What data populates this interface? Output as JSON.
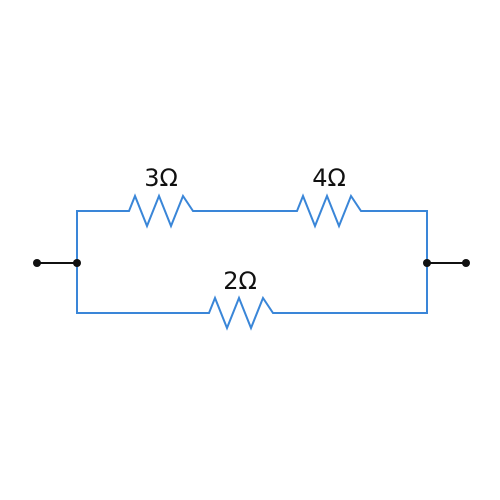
{
  "circuit": {
    "wire_color": "#3a86d8",
    "terminal_color": "#111111",
    "resistors": [
      {
        "id": "r1",
        "label": "3Ω"
      },
      {
        "id": "r2",
        "label": "4Ω"
      },
      {
        "id": "r3",
        "label": "2Ω"
      }
    ]
  }
}
